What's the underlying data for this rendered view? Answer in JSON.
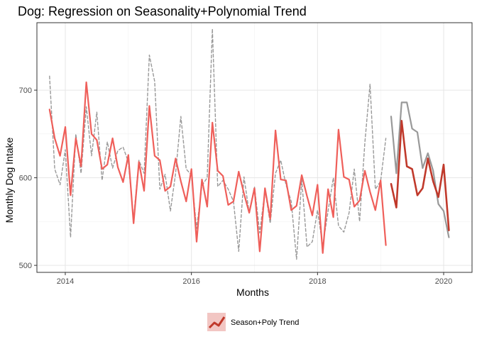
{
  "chart_data": {
    "type": "line",
    "title": "Dog: Regression on Seasonality+Polynomial Trend",
    "xlabel": "Months",
    "ylabel": "Monthly Dog Intake",
    "xlim": [
      2013.55,
      2020.45
    ],
    "ylim": [
      492,
      777
    ],
    "x_ticks": [
      2014,
      2016,
      2018,
      2020
    ],
    "y_ticks": [
      500,
      600,
      700
    ],
    "x_tick_labels": [
      "2014",
      "2016",
      "2018",
      "2020"
    ],
    "y_tick_labels": [
      "500",
      "600",
      "700"
    ],
    "grid": true,
    "legend_position": "bottom",
    "legend_entries": [
      "Season+Poly Trend"
    ],
    "colors": {
      "observed_train": "#999999",
      "observed_test": "#999999",
      "fitted": "#ef5f5a",
      "forecast": "#c0392b",
      "legend_key_bg": "#f2c6c3"
    },
    "series": [
      {
        "style": "dashed",
        "x": [
          2013.75,
          2013.833,
          2013.917,
          2014.0,
          2014.083,
          2014.167,
          2014.25,
          2014.333,
          2014.417,
          2014.5,
          2014.583,
          2014.667,
          2014.75,
          2014.833,
          2014.917,
          2015.0,
          2015.083,
          2015.167,
          2015.25,
          2015.333,
          2015.417,
          2015.5,
          2015.583,
          2015.667,
          2015.75,
          2015.833,
          2015.917,
          2016.0,
          2016.083,
          2016.167,
          2016.25,
          2016.333,
          2016.417,
          2016.5,
          2016.583,
          2016.667,
          2016.75,
          2016.833,
          2016.917,
          2017.0,
          2017.083,
          2017.167,
          2017.25,
          2017.333,
          2017.417,
          2017.5,
          2017.583,
          2017.667,
          2017.75,
          2017.833,
          2017.917,
          2018.0,
          2018.083,
          2018.167,
          2018.25,
          2018.333,
          2018.417,
          2018.5,
          2018.583,
          2018.667,
          2018.75,
          2018.833,
          2018.917,
          2019.0,
          2019.083
        ],
        "values": [
          716,
          610,
          592,
          632,
          532,
          650,
          605,
          681,
          625,
          675,
          597,
          641,
          611,
          631,
          635,
          618,
          553,
          620,
          605,
          740,
          710,
          587,
          604,
          562,
          605,
          670,
          610,
          603,
          542,
          591,
          600,
          770,
          590,
          597,
          587,
          573,
          516,
          601,
          560,
          590,
          537,
          586,
          548,
          605,
          620,
          592,
          573,
          507,
          598,
          521,
          527,
          563,
          522,
          562,
          600,
          545,
          538,
          560,
          610,
          550,
          640,
          707,
          587,
          596,
          645
        ]
      },
      {
        "style": "solid",
        "x": [
          2013.75,
          2013.833,
          2013.917,
          2014.0,
          2014.083,
          2014.167,
          2014.25,
          2014.333,
          2014.417,
          2014.5,
          2014.583,
          2014.667,
          2014.75,
          2014.833,
          2014.917,
          2015.0,
          2015.083,
          2015.167,
          2015.25,
          2015.333,
          2015.417,
          2015.5,
          2015.583,
          2015.667,
          2015.75,
          2015.833,
          2015.917,
          2016.0,
          2016.083,
          2016.167,
          2016.25,
          2016.333,
          2016.417,
          2016.5,
          2016.583,
          2016.667,
          2016.75,
          2016.833,
          2016.917,
          2017.0,
          2017.083,
          2017.167,
          2017.25,
          2017.333,
          2017.417,
          2017.5,
          2017.583,
          2017.667,
          2017.75,
          2017.833,
          2017.917,
          2018.0,
          2018.083,
          2018.167,
          2018.25,
          2018.333,
          2018.417,
          2018.5,
          2018.583,
          2018.667,
          2018.75,
          2018.833,
          2018.917,
          2019.0,
          2019.083
        ],
        "values": [
          678,
          645,
          625,
          658,
          580,
          645,
          613,
          709,
          650,
          643,
          610,
          615,
          645,
          612,
          595,
          626,
          548,
          618,
          585,
          682,
          625,
          620,
          585,
          590,
          622,
          596,
          573,
          610,
          527,
          598,
          567,
          663,
          608,
          602,
          569,
          573,
          607,
          582,
          560,
          588,
          516,
          588,
          553,
          654,
          598,
          597,
          563,
          568,
          603,
          579,
          557,
          592,
          514,
          587,
          555,
          655,
          601,
          598,
          567,
          574,
          608,
          584,
          563,
          597,
          523
        ]
      },
      {
        "style": "solid",
        "x": [
          2019.167,
          2019.25,
          2019.333,
          2019.417,
          2019.5,
          2019.583,
          2019.667,
          2019.75,
          2019.833,
          2019.917,
          2020.0,
          2020.083
        ],
        "values": [
          670,
          605,
          686,
          686,
          656,
          652,
          611,
          628,
          608,
          570,
          562,
          532
        ]
      },
      {
        "name": "Season+Poly Trend",
        "style": "solid",
        "x": [
          2019.167,
          2019.25,
          2019.333,
          2019.417,
          2019.5,
          2019.583,
          2019.667,
          2019.75,
          2019.833,
          2019.917,
          2020.0,
          2020.083
        ],
        "values": [
          593,
          566,
          665,
          613,
          610,
          580,
          588,
          622,
          596,
          578,
          615,
          540
        ]
      }
    ]
  }
}
